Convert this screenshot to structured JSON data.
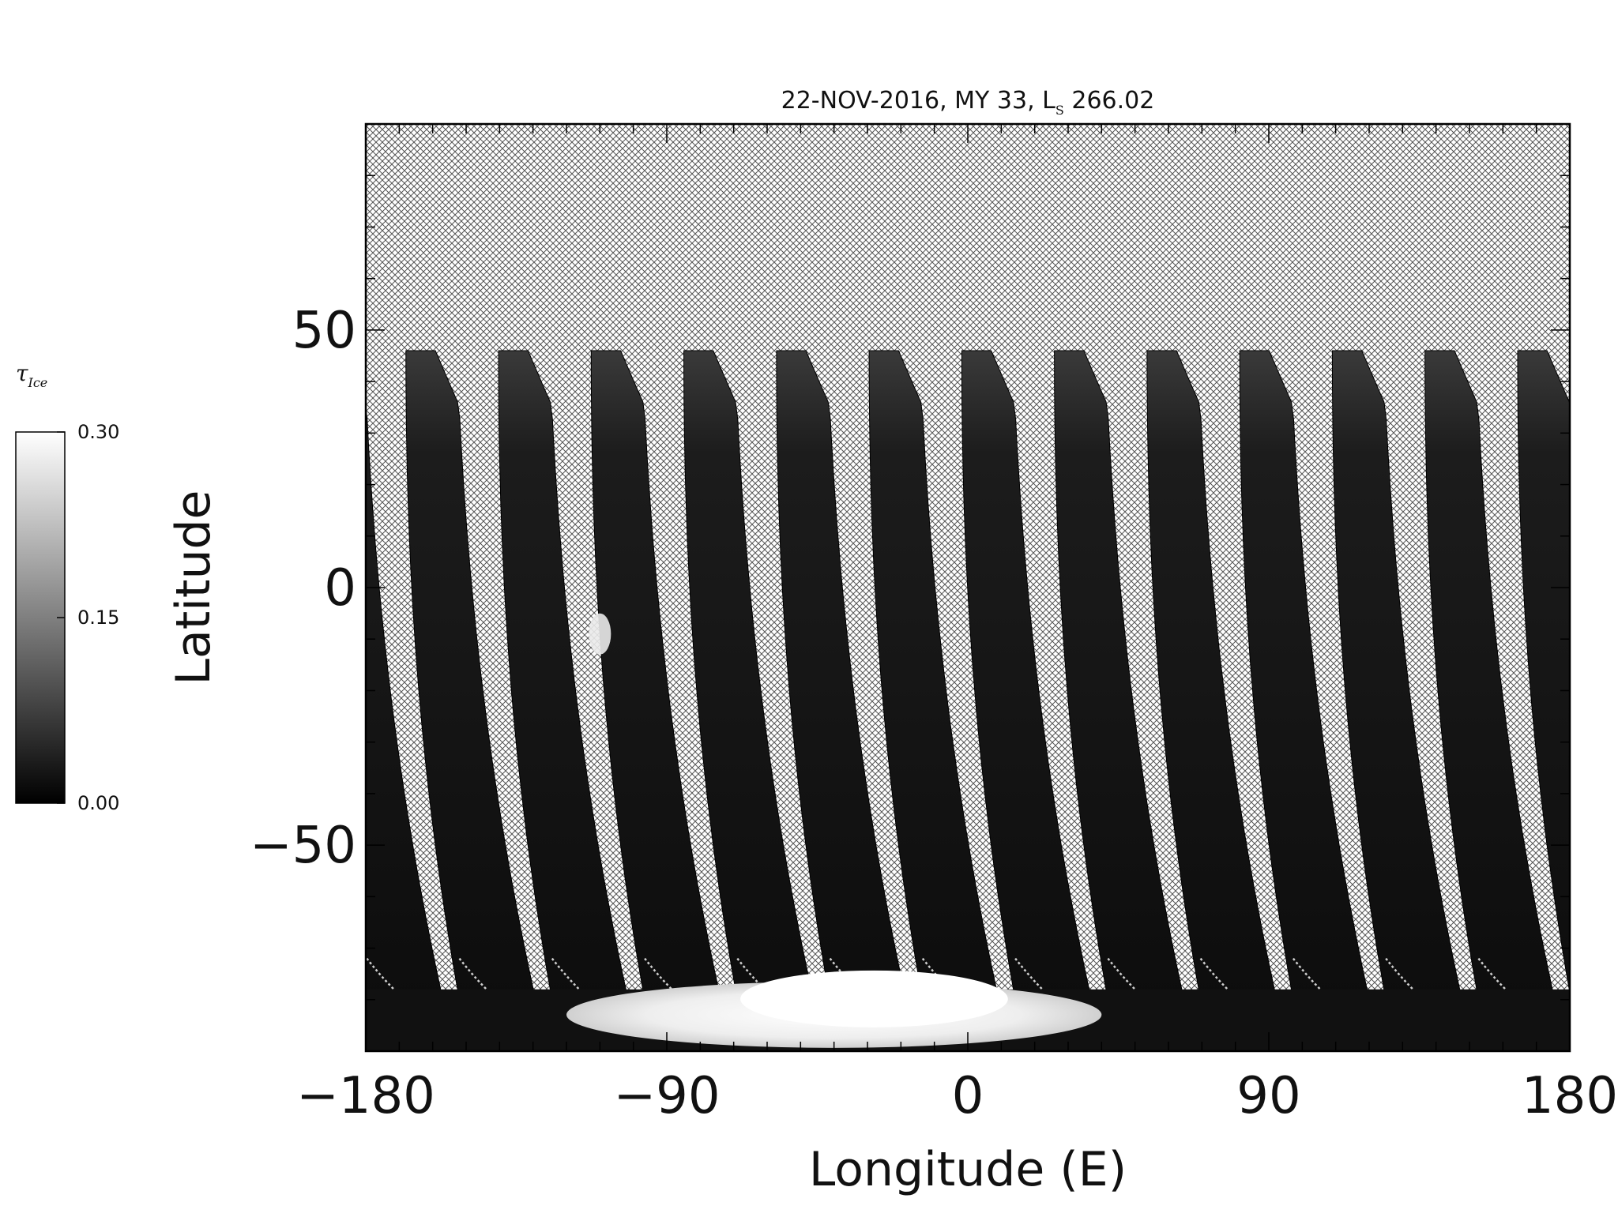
{
  "chart_data": {
    "type": "heatmap",
    "title": "22-NOV-2016, MY 33,  L",
    "title_subscript": "S",
    "title_suffix": " 266.02",
    "xlabel": "Longitude (E)",
    "ylabel": "Latitude",
    "xlim": [
      -180,
      180
    ],
    "ylim": [
      -90,
      90
    ],
    "xticks": [
      -180,
      -90,
      0,
      90,
      180
    ],
    "xtick_labels": [
      "−180",
      "−90",
      "0",
      "90",
      "180"
    ],
    "yticks": [
      -50,
      0,
      50
    ],
    "ytick_labels": [
      "−50",
      "0",
      "50"
    ],
    "grid": false,
    "colormap": "grayscale",
    "colorbar": {
      "label": "τ",
      "label_subscript": "Ice",
      "min": 0.0,
      "max": 0.3,
      "ticks": [
        0.0,
        0.15,
        0.3
      ],
      "tick_labels": [
        "0.00",
        "0.15",
        "0.30"
      ],
      "placement": "left"
    },
    "no_data_pattern": "crosshatch",
    "swath_count": 13,
    "swath_spacing_deg": 27.7,
    "swath_north_limit_deg": 46,
    "swath_south_limit_deg": -87,
    "features": [
      {
        "label": "south polar bright region",
        "lon_min": -120,
        "lon_max": 40,
        "lat": -82,
        "value": 0.3
      },
      {
        "label": "bright spot",
        "lon": -110,
        "lat": -9,
        "value": 0.28
      }
    ]
  },
  "colors": {
    "background": "#ffffff",
    "frame": "#000000",
    "hatch": "#444444",
    "swath_dark": "#0d0d0d",
    "swath_light": "#f5f5f5"
  }
}
